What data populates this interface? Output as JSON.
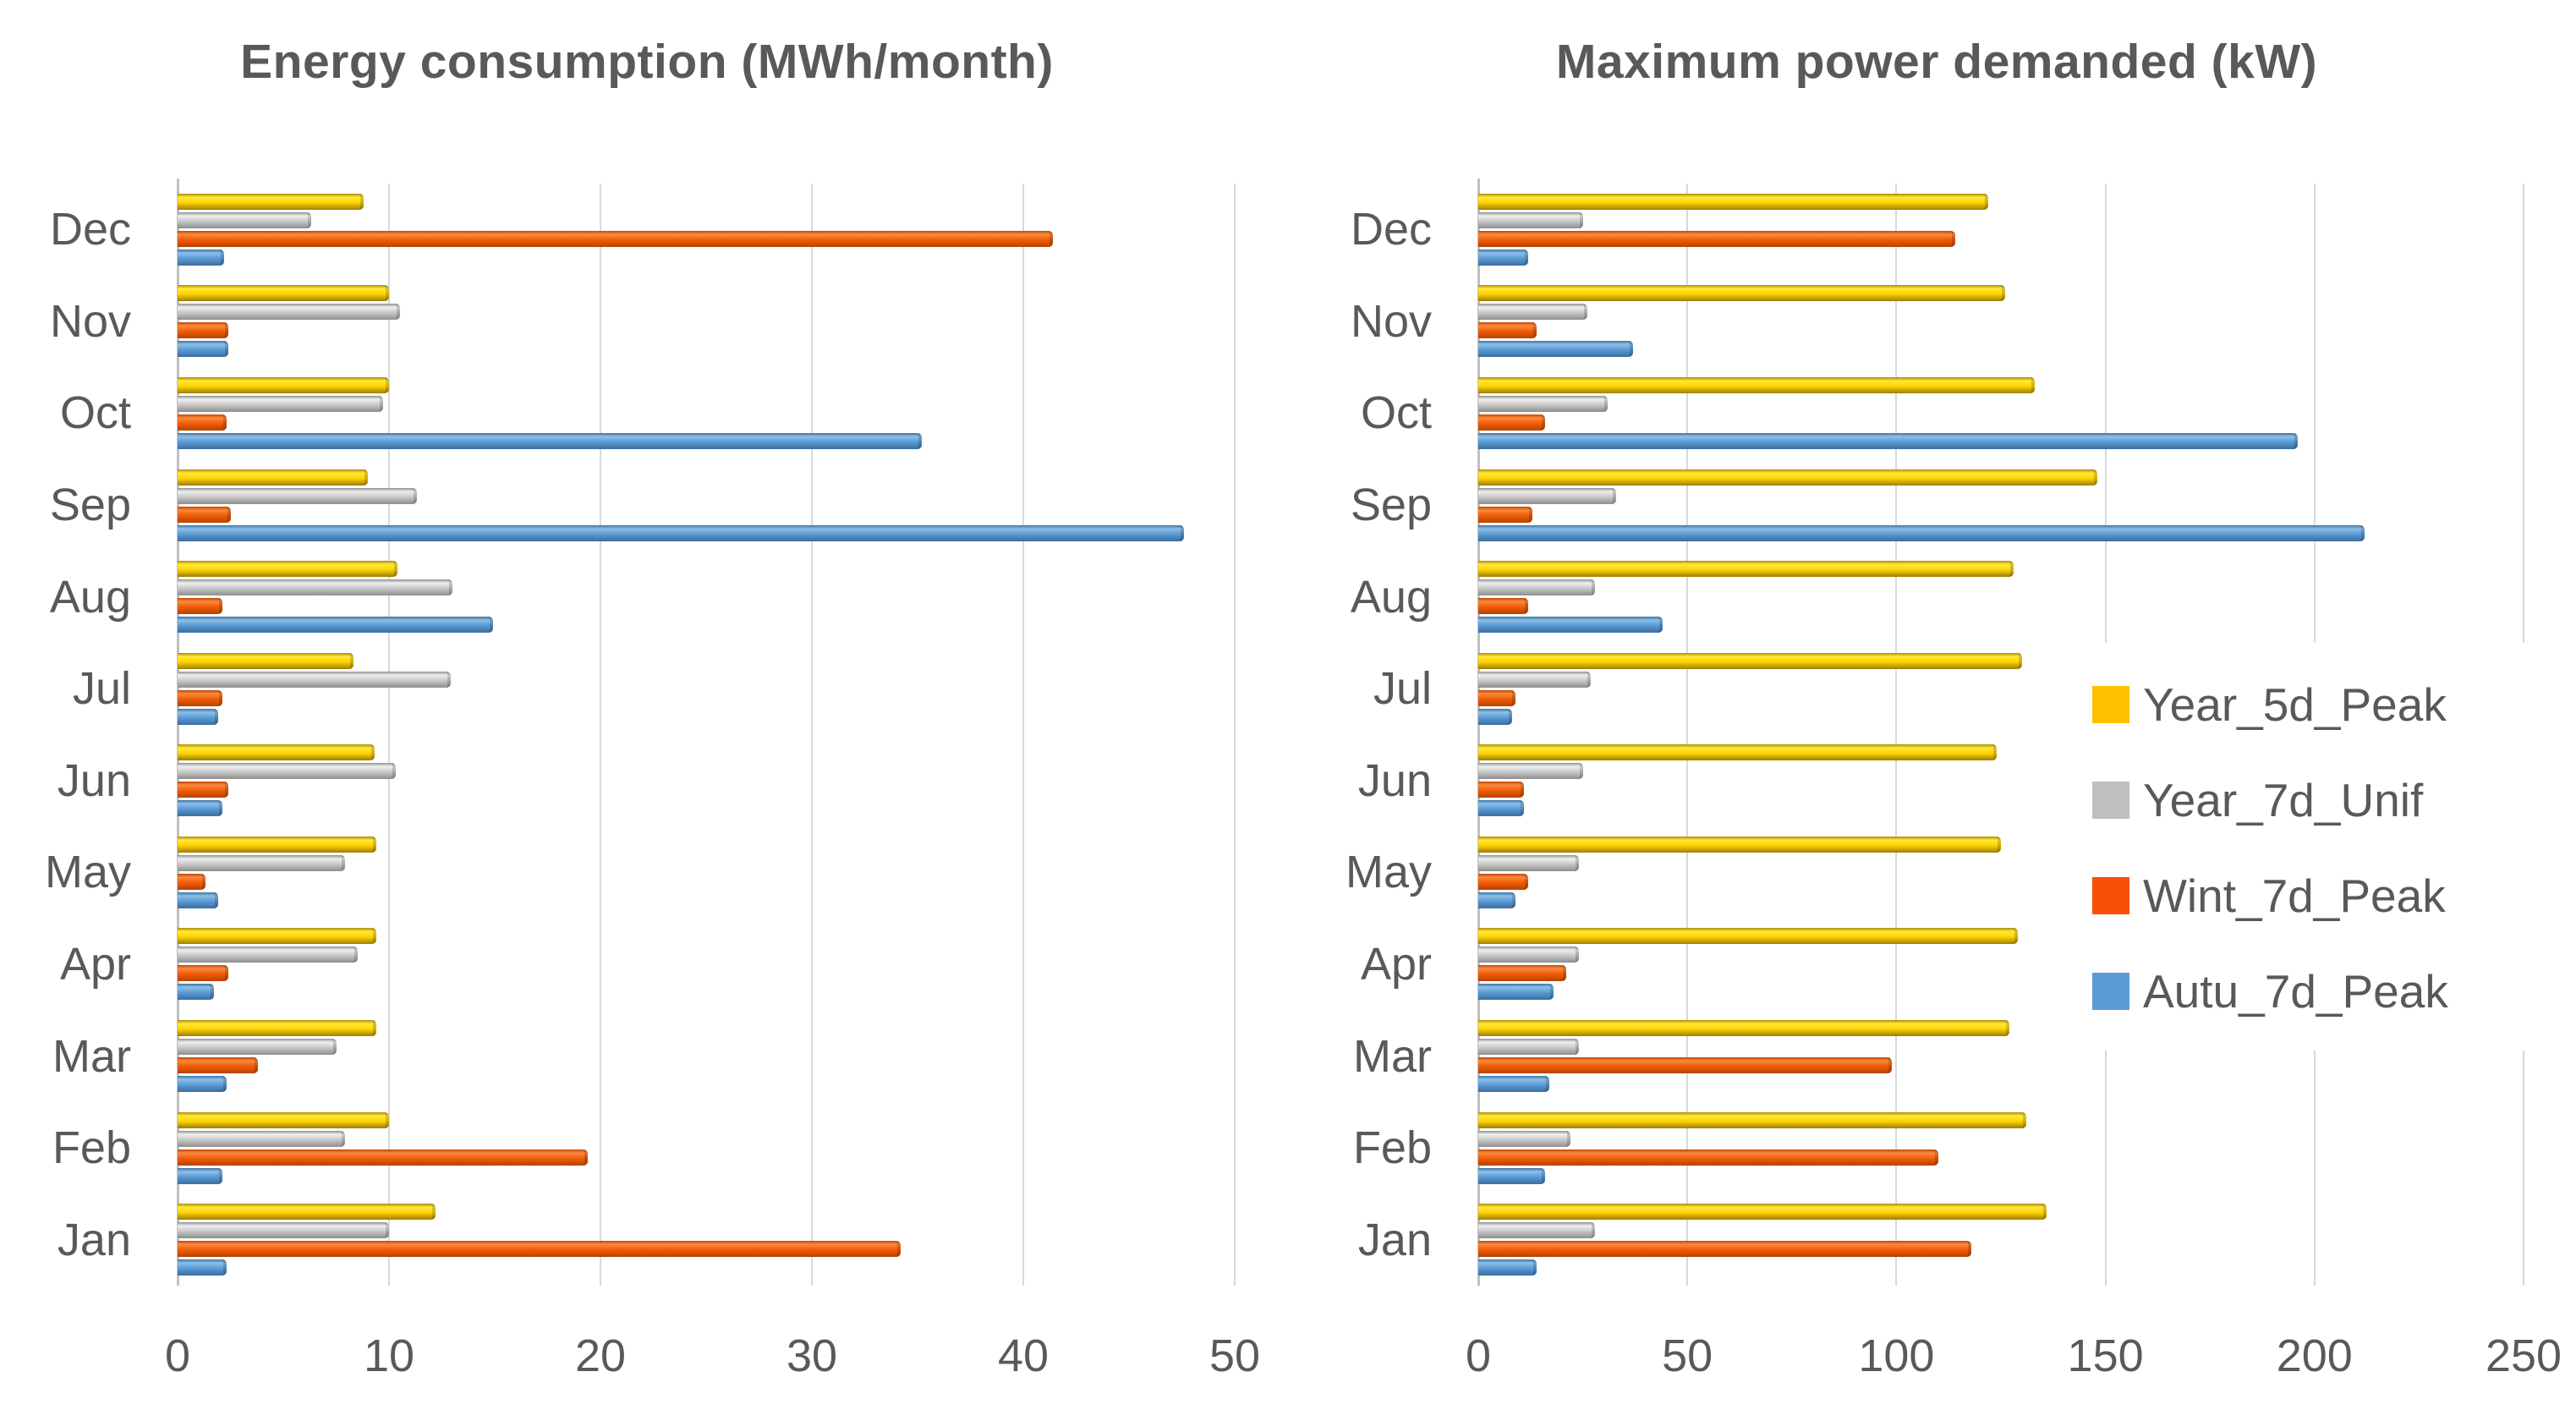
{
  "page": {
    "background": "#FFFFFF",
    "text_color": "#595959",
    "grid_color": "#D9D9D9",
    "axis_color": "#C0C0C0"
  },
  "legend": {
    "position": "right-middle-overlapping-second-chart",
    "items": [
      {
        "label": "Year_5d_Peak",
        "color": "#FFC000"
      },
      {
        "label": "Year_7d_Unif",
        "color": "#BFBFBF"
      },
      {
        "label": "Wint_7d_Peak",
        "color": "#FA5005"
      },
      {
        "label": "Autu_7d_Peak",
        "color": "#5B9BD5"
      }
    ]
  },
  "chart_data": [
    {
      "type": "bar",
      "orientation": "horizontal",
      "title": "Energy consumption (MWh/month)",
      "xlabel": "",
      "ylabel": "",
      "grid": true,
      "xlim": [
        0,
        50
      ],
      "xticks": [
        "0",
        "10",
        "20",
        "30",
        "40",
        "50"
      ],
      "xtick_values": [
        0,
        10,
        20,
        30,
        40,
        50
      ],
      "categories_top_to_bottom": [
        "Dec",
        "Nov",
        "Oct",
        "Sep",
        "Aug",
        "Jul",
        "Jun",
        "May",
        "Apr",
        "Mar",
        "Feb",
        "Jan"
      ],
      "series": [
        {
          "name": "Year_5d_Peak",
          "legend_color": "#FFC000",
          "gradient": [
            "#B08A00",
            "#FFE83C",
            "#FFD400",
            "#9E7E00"
          ],
          "values": [
            8.8,
            10.0,
            10.0,
            9.0,
            10.4,
            8.3,
            9.3,
            9.4,
            9.4,
            9.4,
            10.0,
            12.2
          ]
        },
        {
          "name": "Year_7d_Unif",
          "legend_color": "#BFBFBF",
          "gradient": [
            "#909090",
            "#EFEFEF",
            "#C9C9C9",
            "#8E8E8E"
          ],
          "values": [
            6.3,
            10.5,
            9.7,
            11.3,
            13.0,
            12.9,
            10.3,
            7.9,
            8.5,
            7.5,
            7.9,
            10.0
          ]
        },
        {
          "name": "Wint_7d_Peak",
          "legend_color": "#FA5005",
          "gradient": [
            "#C24700",
            "#FC8A40",
            "#F25C04",
            "#B54300"
          ],
          "values": [
            41.4,
            2.4,
            2.3,
            2.5,
            2.1,
            2.1,
            2.4,
            1.3,
            2.4,
            3.8,
            19.4,
            34.2
          ]
        },
        {
          "name": "Autu_7d_Peak",
          "legend_color": "#5B9BD5",
          "gradient": [
            "#3E739F",
            "#8CC0E8",
            "#5B9BD5",
            "#3A6E9F"
          ],
          "values": [
            2.2,
            2.4,
            35.2,
            47.6,
            14.9,
            1.9,
            2.1,
            1.9,
            1.7,
            2.3,
            2.1,
            2.3
          ]
        }
      ]
    },
    {
      "type": "bar",
      "orientation": "horizontal",
      "title": "Maximum power demanded (kW)",
      "xlabel": "",
      "ylabel": "",
      "grid": true,
      "xlim": [
        0,
        250
      ],
      "xticks": [
        "0",
        "50",
        "100",
        "150",
        "200",
        "250"
      ],
      "xtick_values": [
        0,
        50,
        100,
        150,
        200,
        250
      ],
      "categories_top_to_bottom": [
        "Dec",
        "Nov",
        "Oct",
        "Sep",
        "Aug",
        "Jul",
        "Jun",
        "May",
        "Apr",
        "Mar",
        "Feb",
        "Jan"
      ],
      "series": [
        {
          "name": "Year_5d_Peak",
          "legend_color": "#FFC000",
          "gradient": [
            "#B08A00",
            "#FFE83C",
            "#FFD400",
            "#9E7E00"
          ],
          "values": [
            122,
            126,
            133,
            148,
            128,
            130,
            124,
            125,
            129,
            127,
            131,
            136
          ]
        },
        {
          "name": "Year_7d_Unif",
          "legend_color": "#BFBFBF",
          "gradient": [
            "#909090",
            "#EFEFEF",
            "#C9C9C9",
            "#8E8E8E"
          ],
          "values": [
            25,
            26,
            31,
            33,
            28,
            27,
            25,
            24,
            24,
            24,
            22,
            28
          ]
        },
        {
          "name": "Wint_7d_Peak",
          "legend_color": "#FA5005",
          "gradient": [
            "#C24700",
            "#FC8A40",
            "#F25C04",
            "#B54300"
          ],
          "values": [
            114,
            14,
            16,
            13,
            12,
            9,
            11,
            12,
            21,
            99,
            110,
            118
          ]
        },
        {
          "name": "Autu_7d_Peak",
          "legend_color": "#5B9BD5",
          "gradient": [
            "#3E739F",
            "#8CC0E8",
            "#5B9BD5",
            "#3A6E9F"
          ],
          "values": [
            12,
            37,
            196,
            212,
            44,
            8,
            11,
            9,
            18,
            17,
            16,
            14
          ]
        }
      ]
    }
  ]
}
